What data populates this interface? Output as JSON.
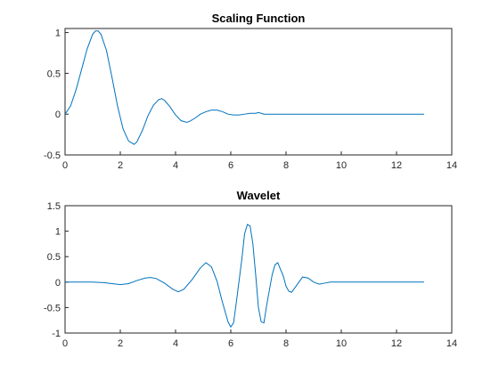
{
  "chart_data": [
    {
      "type": "line",
      "title": "Scaling Function",
      "xlim": [
        0,
        14
      ],
      "ylim": [
        -0.5,
        1.05
      ],
      "xticks": [
        0,
        2,
        4,
        6,
        8,
        10,
        12,
        14
      ],
      "xtick_labels": [
        "0",
        "2",
        "4",
        "6",
        "8",
        "10",
        "12",
        "14"
      ],
      "yticks": [
        -0.5,
        0,
        0.5,
        1
      ],
      "ytick_labels": [
        "-0.5",
        "0",
        "0.5",
        "1"
      ],
      "grid": false,
      "series": [
        {
          "color": "#0072bd",
          "x": [
            0,
            0.2,
            0.4,
            0.6,
            0.8,
            1.0,
            1.1,
            1.2,
            1.3,
            1.5,
            1.7,
            1.9,
            2.1,
            2.3,
            2.5,
            2.6,
            2.8,
            3.0,
            3.2,
            3.4,
            3.5,
            3.6,
            3.8,
            4.0,
            4.2,
            4.4,
            4.5,
            4.7,
            4.9,
            5.1,
            5.3,
            5.5,
            5.7,
            5.9,
            6.1,
            6.3,
            6.5,
            6.7,
            6.9,
            7.0,
            7.1,
            7.2,
            7.5,
            8.0,
            9.0,
            10.0,
            11.0,
            12.0,
            13.0
          ],
          "y": [
            0.0,
            0.1,
            0.3,
            0.55,
            0.8,
            0.98,
            1.02,
            1.02,
            0.98,
            0.78,
            0.45,
            0.1,
            -0.18,
            -0.33,
            -0.37,
            -0.34,
            -0.2,
            -0.02,
            0.11,
            0.18,
            0.19,
            0.17,
            0.09,
            -0.01,
            -0.08,
            -0.1,
            -0.09,
            -0.05,
            0.0,
            0.03,
            0.05,
            0.05,
            0.03,
            0.0,
            -0.01,
            -0.01,
            0.0,
            0.01,
            0.01,
            0.02,
            0.01,
            0.0,
            0.0,
            0.0,
            0.0,
            0.0,
            0.0,
            0.0,
            0.0
          ]
        }
      ]
    },
    {
      "type": "line",
      "title": "Wavelet",
      "xlim": [
        0,
        14
      ],
      "ylim": [
        -1,
        1.5
      ],
      "xticks": [
        0,
        2,
        4,
        6,
        8,
        10,
        12,
        14
      ],
      "xtick_labels": [
        "0",
        "2",
        "4",
        "6",
        "8",
        "10",
        "12",
        "14"
      ],
      "yticks": [
        -1,
        -0.5,
        0,
        0.5,
        1,
        1.5
      ],
      "ytick_labels": [
        "-1",
        "-0.5",
        "0",
        "0.5",
        "1",
        "1.5"
      ],
      "grid": false,
      "series": [
        {
          "color": "#0072bd",
          "x": [
            0,
            1.0,
            1.4,
            1.7,
            2.0,
            2.3,
            2.6,
            2.9,
            3.1,
            3.3,
            3.6,
            3.9,
            4.1,
            4.3,
            4.6,
            4.9,
            5.1,
            5.3,
            5.5,
            5.7,
            5.9,
            6.0,
            6.1,
            6.2,
            6.4,
            6.5,
            6.6,
            6.7,
            6.8,
            6.9,
            7.0,
            7.1,
            7.2,
            7.3,
            7.5,
            7.6,
            7.7,
            7.9,
            8.0,
            8.1,
            8.2,
            8.4,
            8.6,
            8.8,
            9.0,
            9.2,
            9.4,
            9.6,
            10.0,
            11.0,
            12.0,
            13.0
          ],
          "y": [
            0.0,
            0.0,
            -0.01,
            -0.03,
            -0.05,
            -0.03,
            0.03,
            0.08,
            0.09,
            0.07,
            -0.02,
            -0.14,
            -0.19,
            -0.14,
            0.05,
            0.28,
            0.38,
            0.3,
            0.02,
            -0.4,
            -0.78,
            -0.88,
            -0.8,
            -0.4,
            0.45,
            0.95,
            1.13,
            1.1,
            0.75,
            0.15,
            -0.5,
            -0.78,
            -0.8,
            -0.45,
            0.15,
            0.34,
            0.38,
            0.12,
            -0.08,
            -0.18,
            -0.2,
            -0.05,
            0.1,
            0.08,
            0.0,
            -0.04,
            -0.02,
            0.0,
            0.0,
            0.0,
            0.0,
            0.0
          ]
        }
      ]
    }
  ]
}
